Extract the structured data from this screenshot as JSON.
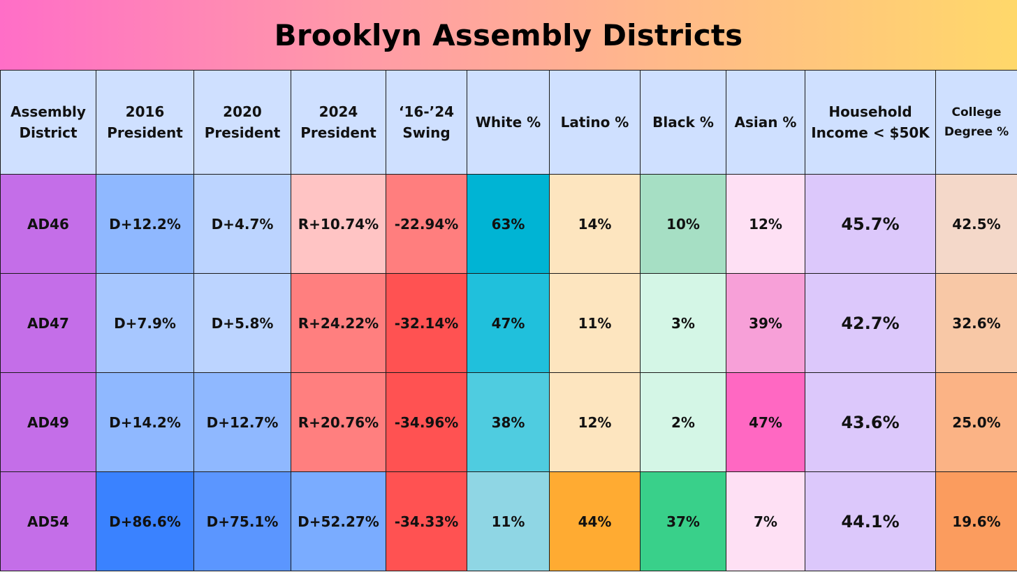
{
  "chart_data": {
    "type": "table",
    "title": "Brooklyn Assembly Districts",
    "columns": [
      {
        "key": "district",
        "label_lines": [
          "Assembly",
          "District"
        ]
      },
      {
        "key": "p2016",
        "label_lines": [
          "2016",
          "President"
        ]
      },
      {
        "key": "p2020",
        "label_lines": [
          "2020",
          "President"
        ]
      },
      {
        "key": "p2024",
        "label_lines": [
          "2024",
          "President"
        ]
      },
      {
        "key": "swing",
        "label_lines": [
          "‘16-’24",
          "Swing"
        ]
      },
      {
        "key": "white",
        "label_lines": [
          "White %"
        ]
      },
      {
        "key": "latino",
        "label_lines": [
          "Latino %"
        ]
      },
      {
        "key": "black",
        "label_lines": [
          "Black %"
        ]
      },
      {
        "key": "asian",
        "label_lines": [
          "Asian %"
        ]
      },
      {
        "key": "income",
        "label_lines": [
          "Household",
          "Income < $50K"
        ]
      },
      {
        "key": "college",
        "label_lines": [
          "College",
          "Degree %"
        ]
      }
    ],
    "rows": [
      {
        "district": "AD46",
        "p2016": "D+12.2%",
        "p2020": "D+4.7%",
        "p2024": "R+10.74%",
        "swing": "-22.94%",
        "white": "63%",
        "latino": "14%",
        "black": "10%",
        "asian": "12%",
        "income": "45.7%",
        "college": "42.5%"
      },
      {
        "district": "AD47",
        "p2016": "D+7.9%",
        "p2020": "D+5.8%",
        "p2024": "R+24.22%",
        "swing": "-32.14%",
        "white": "47%",
        "latino": "11%",
        "black": "3%",
        "asian": "39%",
        "income": "42.7%",
        "college": "32.6%"
      },
      {
        "district": "AD49",
        "p2016": "D+14.2%",
        "p2020": "D+12.7%",
        "p2024": "R+20.76%",
        "swing": "-34.96%",
        "white": "38%",
        "latino": "12%",
        "black": "2%",
        "asian": "47%",
        "income": "43.6%",
        "college": "25.0%"
      },
      {
        "district": "AD54",
        "p2016": "D+86.6%",
        "p2020": "D+75.1%",
        "p2024": "D+52.27%",
        "swing": "-34.33%",
        "white": "11%",
        "latino": "44%",
        "black": "37%",
        "asian": "7%",
        "income": "44.1%",
        "college": "19.6%"
      }
    ],
    "cell_colors": [
      [
        "#c46ee8",
        "#8fb8ff",
        "#bcd4ff",
        "#ffc4c4",
        "#ff7e7e",
        "#00b4d4",
        "#fde5bf",
        "#a6dfc4",
        "#fee0f4",
        "#dcc8fb",
        "#f4d8c9"
      ],
      [
        "#c46ee8",
        "#a7c7ff",
        "#bcd4ff",
        "#ff7f7f",
        "#ff5252",
        "#20c0dc",
        "#fde5bf",
        "#d4f6e6",
        "#f7a0d8",
        "#dcc8fb",
        "#f8c8a6"
      ],
      [
        "#c46ee8",
        "#8fb8ff",
        "#8fb8ff",
        "#ff7f7f",
        "#ff5252",
        "#4fcce0",
        "#fde5bf",
        "#d4f6e6",
        "#ff68c2",
        "#dcc8fb",
        "#fbb385"
      ],
      [
        "#c46ee8",
        "#3a82ff",
        "#5b96ff",
        "#7aacff",
        "#ff5252",
        "#8fd6e4",
        "#ffab32",
        "#39d08a",
        "#fee0f4",
        "#dcc8fb",
        "#fb9c5e"
      ]
    ]
  }
}
